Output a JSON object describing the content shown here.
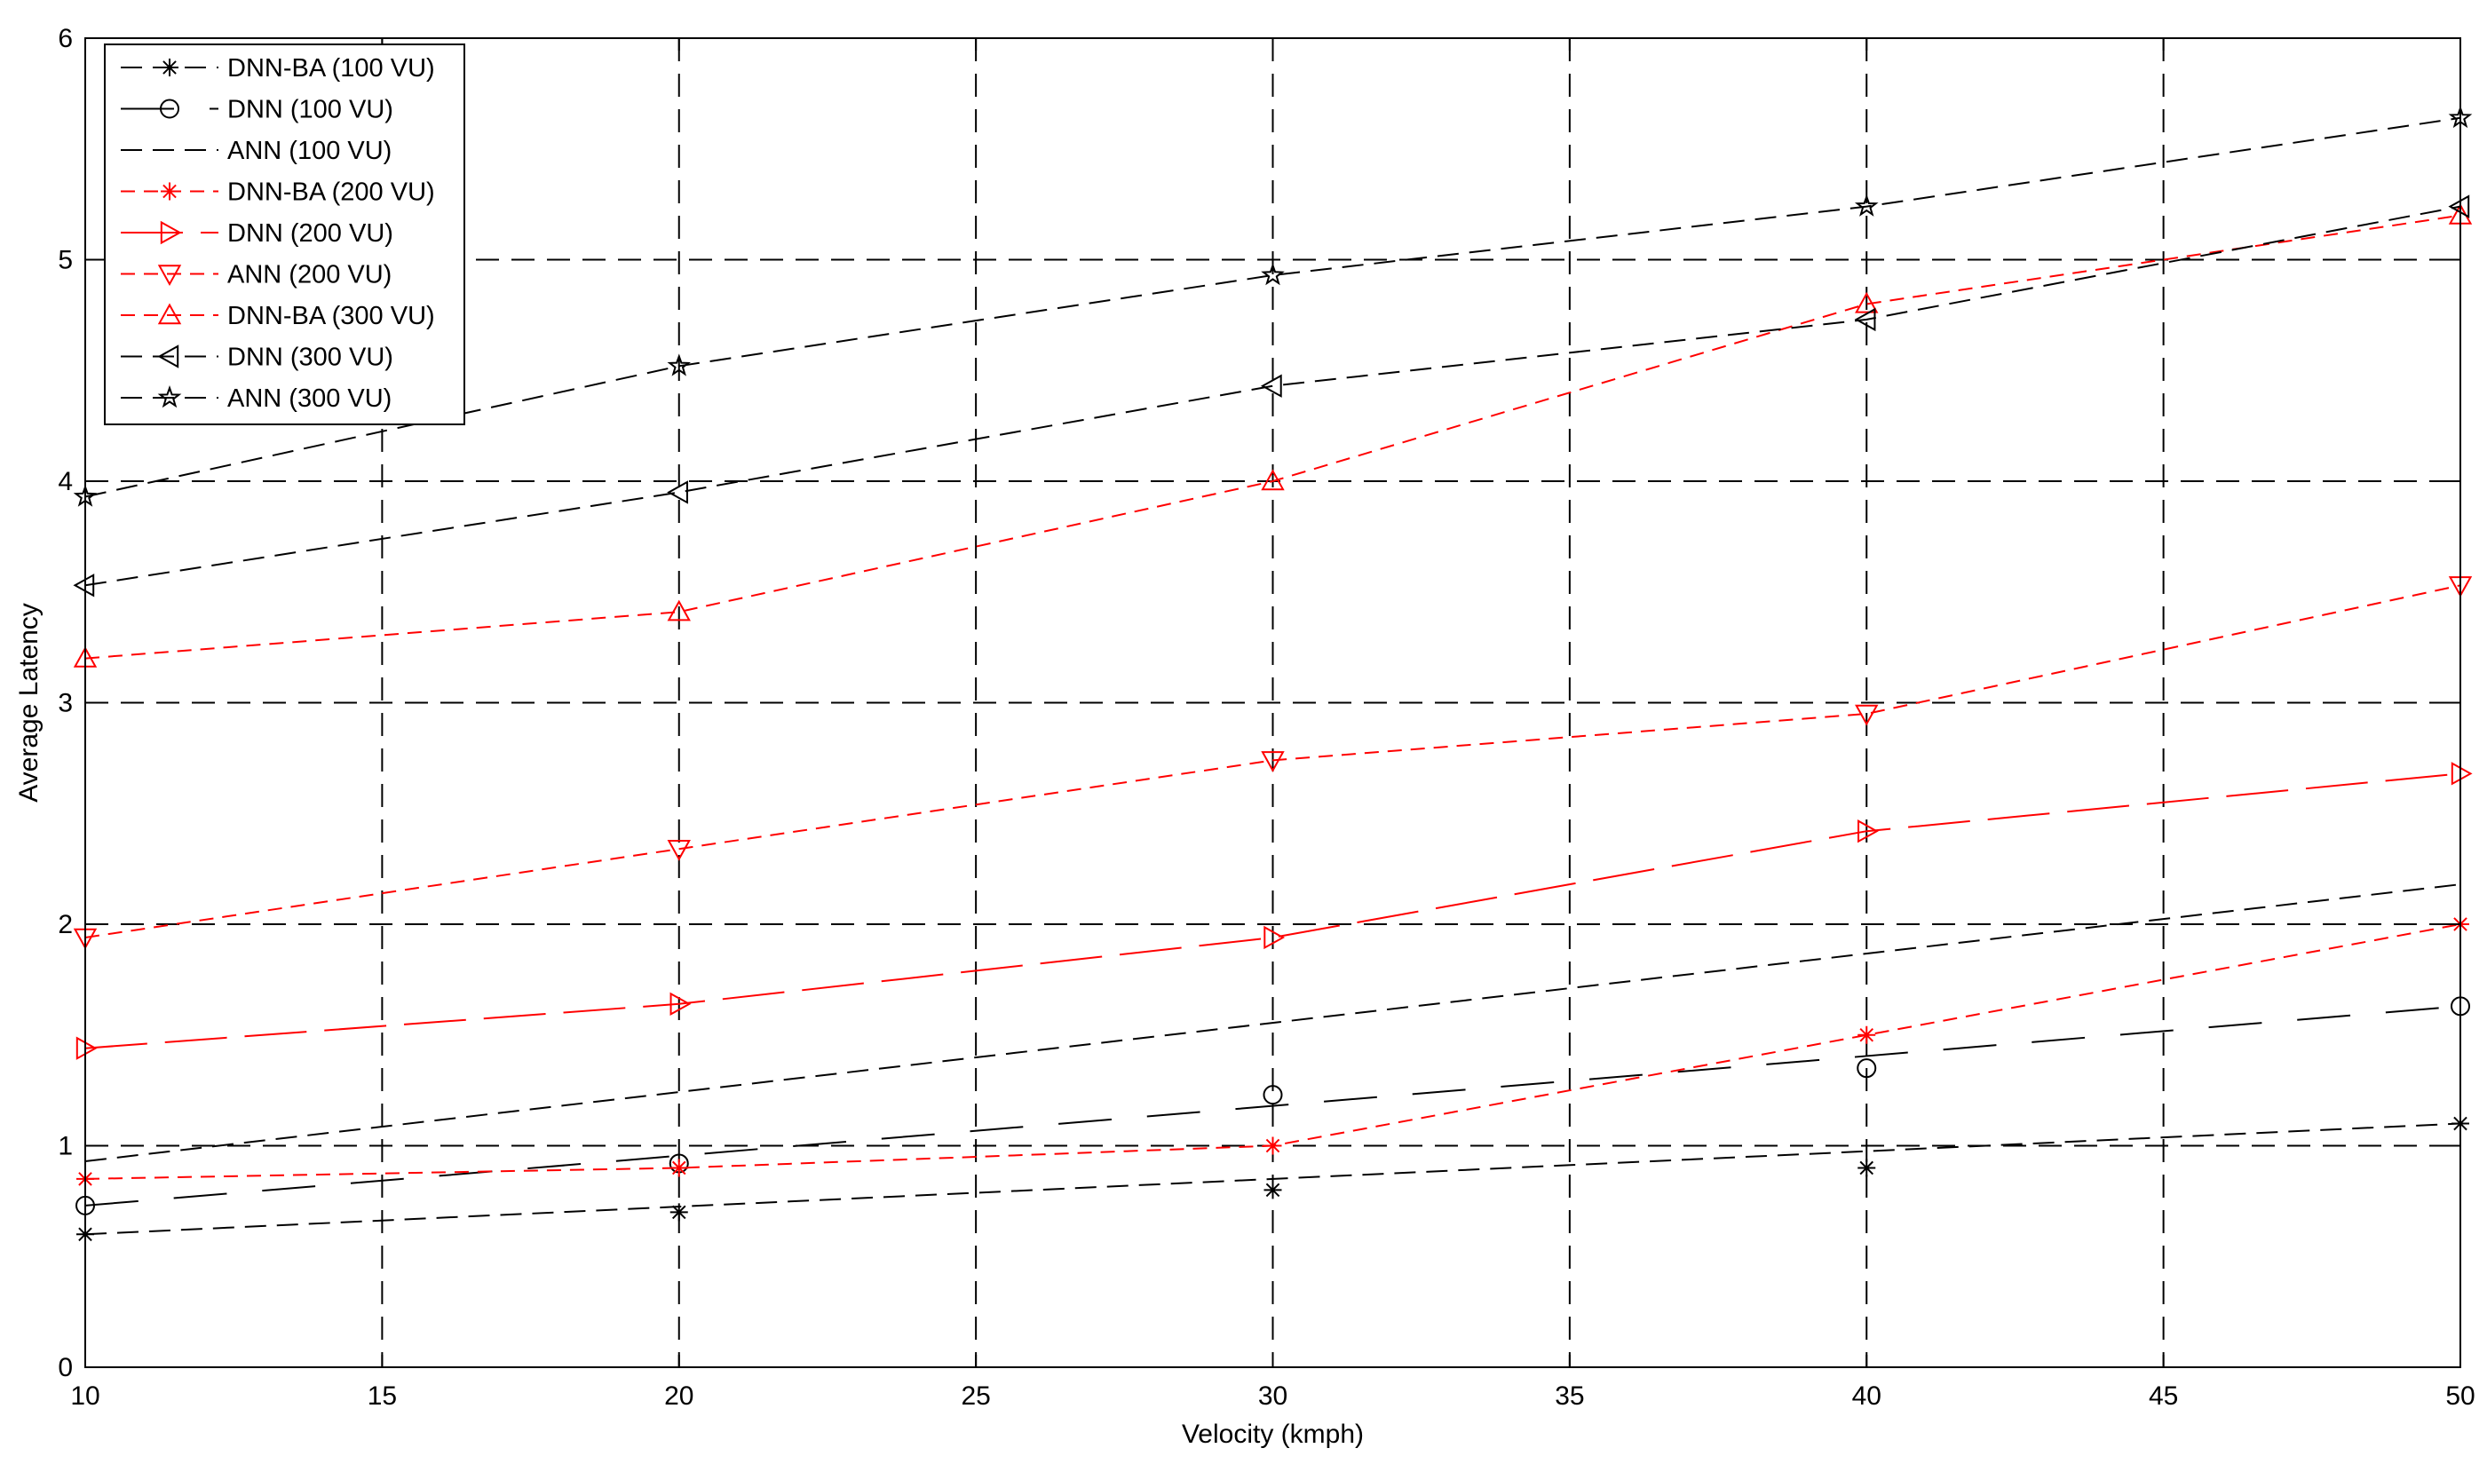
{
  "chart_data": {
    "type": "line",
    "title": "",
    "xlabel": "Velocity (kmph)",
    "ylabel": "Average Latency",
    "xlim": [
      10,
      50
    ],
    "ylim": [
      0,
      6
    ],
    "xticks": [
      10,
      15,
      20,
      25,
      30,
      35,
      40,
      45,
      50
    ],
    "yticks": [
      0,
      1,
      2,
      3,
      4,
      5,
      6
    ],
    "grid": true,
    "legend_position": "top-left",
    "x": [
      10,
      20,
      30,
      40,
      50
    ],
    "series": [
      {
        "name": "DNN-BA (100 VU)",
        "color": "#000000",
        "marker": "asterisk",
        "dash": "medium",
        "values": [
          0.6,
          0.7,
          0.8,
          0.9,
          1.1
        ],
        "fit": [
          0.6,
          1.1
        ]
      },
      {
        "name": "DNN (100 VU)",
        "color": "#000000",
        "marker": "circle",
        "dash": "longgap",
        "values": [
          0.73,
          0.92,
          1.23,
          1.35,
          1.63
        ],
        "fit": [
          0.73,
          1.63
        ]
      },
      {
        "name": "ANN (100 VU)",
        "color": "#000000",
        "marker": "none",
        "dash": "medium",
        "values": [
          0.93,
          1.35,
          1.59,
          1.83,
          2.18
        ],
        "fit": [
          0.93,
          2.18
        ]
      },
      {
        "name": "DNN-BA (200 VU)",
        "color": "#ff0000",
        "marker": "asterisk",
        "dash": "short",
        "values": [
          0.85,
          0.9,
          1.0,
          1.5,
          2.0
        ],
        "fit": null
      },
      {
        "name": "DNN (200 VU)",
        "color": "#ff0000",
        "marker": "triangle-right",
        "dash": "long",
        "values": [
          1.44,
          1.64,
          1.94,
          2.42,
          2.68
        ],
        "fit": null
      },
      {
        "name": "ANN (200 VU)",
        "color": "#ff0000",
        "marker": "triangle-down",
        "dash": "short",
        "values": [
          1.94,
          2.34,
          2.74,
          2.95,
          3.53
        ],
        "fit": null
      },
      {
        "name": "DNN-BA (300 VU)",
        "color": "#ff0000",
        "marker": "triangle-up",
        "dash": "short",
        "values": [
          3.2,
          3.41,
          4.0,
          4.8,
          5.2
        ],
        "fit": null
      },
      {
        "name": "DNN (300 VU)",
        "color": "#000000",
        "marker": "triangle-left",
        "dash": "medium",
        "values": [
          3.53,
          3.95,
          4.43,
          4.73,
          5.24
        ],
        "fit": null
      },
      {
        "name": "ANN (300 VU)",
        "color": "#000000",
        "marker": "star",
        "dash": "medium",
        "values": [
          3.93,
          4.52,
          4.93,
          5.24,
          5.64
        ],
        "fit": null
      }
    ]
  }
}
